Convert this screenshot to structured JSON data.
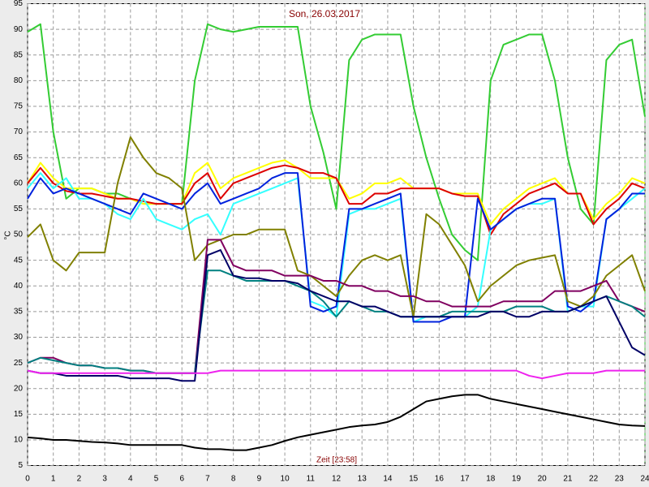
{
  "chart_data": {
    "type": "line",
    "title": "Son, 26.03.2017",
    "y_label": "°C",
    "x_label": "Zeit [23:58]",
    "x": [
      0,
      0.5,
      1,
      1.5,
      2,
      2.5,
      3,
      3.5,
      4,
      4.5,
      5,
      5.5,
      6,
      6.5,
      7,
      7.5,
      8,
      8.5,
      9,
      9.5,
      10,
      10.5,
      11,
      11.5,
      12,
      12.5,
      13,
      13.5,
      14,
      14.5,
      15,
      15.5,
      16,
      16.5,
      17,
      17.5,
      18,
      18.5,
      19,
      19.5,
      20,
      20.5,
      21,
      21.5,
      22,
      22.5,
      23,
      23.5,
      24
    ],
    "xlim": [
      0,
      24
    ],
    "xticks": [
      0,
      1,
      2,
      3,
      4,
      5,
      6,
      7,
      8,
      9,
      10,
      11,
      12,
      13,
      14,
      15,
      16,
      17,
      18,
      19,
      20,
      21,
      22,
      23,
      24
    ],
    "ylim": [
      5,
      95
    ],
    "yticks": [
      5,
      10,
      15,
      20,
      25,
      30,
      35,
      40,
      45,
      50,
      55,
      60,
      65,
      70,
      75,
      80,
      85,
      90,
      95
    ],
    "grid": true,
    "series": [
      {
        "color": "#33cc33",
        "values": [
          89.5,
          91,
          70,
          57,
          59,
          59,
          58,
          58,
          57,
          56,
          56,
          56,
          56,
          80,
          91,
          90,
          89.5,
          90,
          90.5,
          90.5,
          90.5,
          90.5,
          75,
          66,
          55,
          84,
          88,
          89,
          89,
          89,
          75,
          65,
          57,
          50,
          47,
          45,
          80,
          87,
          88,
          89,
          89,
          80,
          65,
          55,
          52,
          84,
          87,
          88,
          73
        ]
      },
      {
        "color": "#ffff00",
        "values": [
          60,
          64,
          61,
          59,
          59,
          59,
          58,
          57,
          57,
          56,
          56,
          56,
          56,
          62,
          64,
          59,
          61,
          62,
          63,
          64,
          64.5,
          63,
          61,
          61,
          61,
          57,
          58,
          60,
          60,
          61,
          59,
          59,
          59,
          58,
          58,
          58,
          52,
          55,
          57,
          59,
          60,
          61,
          58,
          58,
          53,
          56,
          58,
          61,
          60
        ]
      },
      {
        "color": "#dd0000",
        "values": [
          60,
          63,
          60,
          58.5,
          58,
          58,
          57.5,
          57,
          57,
          56.5,
          56,
          56,
          56,
          60,
          62,
          57,
          60,
          61,
          62,
          63,
          63.5,
          63,
          62,
          62,
          61,
          56,
          56,
          58,
          58,
          59,
          59,
          59,
          59,
          58,
          57.5,
          57.5,
          50,
          54,
          56,
          58,
          59,
          60,
          58,
          58,
          52,
          55,
          57,
          60,
          59
        ]
      },
      {
        "color": "#33ffff",
        "values": [
          59,
          62,
          59,
          61,
          57,
          57,
          56,
          54,
          53,
          57,
          53,
          52,
          51,
          53,
          54,
          50,
          56,
          57,
          58,
          59,
          60,
          61,
          37,
          36,
          34,
          54,
          55,
          55,
          56,
          57,
          33,
          34,
          34,
          34,
          34,
          36,
          51,
          53,
          55,
          56,
          56,
          57,
          35,
          36,
          36,
          53,
          55,
          57,
          59
        ]
      },
      {
        "color": "#0022dd",
        "values": [
          57,
          61,
          58,
          59,
          58,
          57,
          56,
          55,
          54,
          58,
          57,
          56,
          55,
          58,
          60,
          56,
          57,
          58,
          59,
          61,
          62,
          62,
          36,
          35,
          36,
          55,
          55,
          56,
          57,
          58,
          33,
          33,
          33,
          34,
          34,
          57,
          51,
          53,
          55,
          56,
          57,
          57,
          36,
          35,
          37,
          53,
          55,
          58,
          58
        ]
      },
      {
        "color": "#808000",
        "values": [
          49.5,
          52,
          45,
          43,
          46.5,
          46.5,
          46.5,
          60,
          69,
          65,
          62,
          61,
          59,
          45,
          48,
          49,
          50,
          50,
          51,
          51,
          51,
          43,
          42,
          40,
          38,
          42,
          45,
          46,
          45,
          46,
          34,
          54,
          52,
          48,
          44,
          37,
          40,
          42,
          44,
          45,
          45.5,
          46,
          37,
          36,
          38,
          42,
          44,
          46,
          39
        ]
      },
      {
        "color": "#800060",
        "values": [
          25,
          26,
          26,
          25,
          24.5,
          24.5,
          24,
          24,
          23.5,
          23.5,
          23,
          23,
          23,
          23,
          49,
          49,
          44,
          43,
          43,
          43,
          42,
          42,
          42,
          41,
          41,
          40,
          40,
          39,
          39,
          38,
          38,
          37,
          37,
          36,
          36,
          36,
          36,
          37,
          37,
          37,
          37,
          39,
          39,
          39,
          40,
          41,
          37,
          36,
          35
        ]
      },
      {
        "color": "#008080",
        "values": [
          25,
          26,
          25.5,
          25,
          24.5,
          24.5,
          24,
          24,
          23.5,
          23.5,
          23,
          23,
          23,
          23,
          43,
          43,
          42,
          41,
          41,
          41,
          41,
          40,
          39,
          37,
          34,
          37,
          36,
          35,
          35,
          34,
          34,
          34,
          34,
          35,
          35,
          35,
          35,
          35,
          36,
          36,
          36,
          35,
          35,
          36,
          37,
          38,
          37,
          36,
          34
        ]
      },
      {
        "color": "#000066",
        "values": [
          23.5,
          23,
          23,
          22.5,
          22.5,
          22.5,
          22.5,
          22.5,
          22,
          22,
          22,
          22,
          21.5,
          21.5,
          46,
          47,
          42,
          41.5,
          41.5,
          41,
          41,
          40.5,
          39,
          38,
          37,
          37,
          36,
          36,
          35,
          34,
          34,
          34,
          34,
          34,
          34,
          34,
          35,
          35,
          34,
          34,
          35,
          35,
          35,
          36,
          37,
          38,
          33,
          28,
          26.5
        ]
      },
      {
        "color": "#ee22ee",
        "values": [
          23.5,
          23,
          23,
          23,
          23,
          23,
          23,
          23,
          23,
          23,
          23,
          23,
          23,
          23,
          23,
          23.5,
          23.5,
          23.5,
          23.5,
          23.5,
          23.5,
          23.5,
          23.5,
          23.5,
          23.5,
          23.5,
          23.5,
          23.5,
          23.5,
          23.5,
          23.5,
          23.5,
          23.5,
          23.5,
          23.5,
          23.5,
          23.5,
          23.5,
          23.5,
          22.5,
          22,
          22.5,
          23,
          23,
          23,
          23.5,
          23.5,
          23.5,
          23.5
        ]
      },
      {
        "color": "#000000",
        "values": [
          10.5,
          10.3,
          10,
          10,
          9.8,
          9.6,
          9.5,
          9.3,
          9,
          9,
          9,
          9,
          9,
          8.5,
          8.2,
          8.2,
          8,
          8,
          8.5,
          9,
          9.8,
          10.5,
          11,
          11.5,
          12,
          12.5,
          12.8,
          13,
          13.5,
          14.5,
          16,
          17.5,
          18,
          18.5,
          18.8,
          18.8,
          18,
          17.5,
          17,
          16.5,
          16,
          15.5,
          15,
          14.5,
          14,
          13.5,
          13,
          12.8,
          12.7
        ]
      }
    ]
  }
}
